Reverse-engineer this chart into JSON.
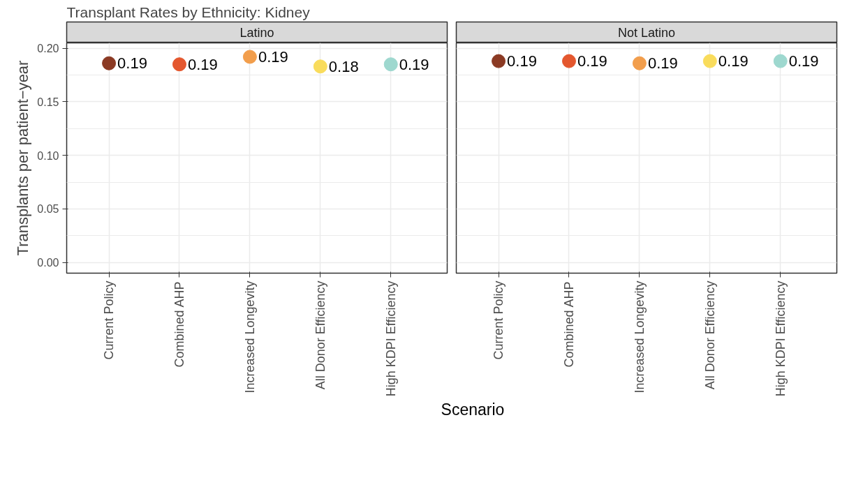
{
  "chart_data": [
    {
      "type": "scatter",
      "title": "Transplant Rates by Ethnicity: Kidney",
      "subtitle": "Latino",
      "ylabel": "Transplants per patient−year",
      "xlabel": "Scenario",
      "categories": [
        "Current Policy",
        "Combined AHP",
        "Increased Longevity",
        "All Donor Efficiency",
        "High KDPI Efficiency"
      ],
      "values": [
        0.186,
        0.185,
        0.192,
        0.183,
        0.185
      ],
      "value_labels": [
        "0.19",
        "0.19",
        "0.19",
        "0.18",
        "0.19"
      ],
      "colors": [
        "#8b3a24",
        "#e4572e",
        "#f29e4c",
        "#f9dc5c",
        "#9ed8cf"
      ],
      "ylim": [
        -0.01,
        0.205
      ],
      "yticks": [
        {
          "value": 0,
          "label": "0.00"
        },
        {
          "value": 0.05,
          "label": "0.05"
        },
        {
          "value": 0.1,
          "label": "0.10"
        },
        {
          "value": 0.15,
          "label": "0.15"
        },
        {
          "value": 0.2,
          "label": "0.20"
        }
      ],
      "grid": true,
      "marker": "circle"
    },
    {
      "type": "scatter",
      "subtitle": "Not Latino",
      "categories": [
        "Current Policy",
        "Combined AHP",
        "Increased Longevity",
        "All Donor Efficiency",
        "High KDPI Efficiency"
      ],
      "values": [
        0.188,
        0.188,
        0.186,
        0.188,
        0.188
      ],
      "value_labels": [
        "0.19",
        "0.19",
        "0.19",
        "0.19",
        "0.19"
      ],
      "colors": [
        "#8b3a24",
        "#e4572e",
        "#f29e4c",
        "#f9dc5c",
        "#9ed8cf"
      ],
      "ylim": [
        -0.01,
        0.205
      ],
      "yticks": [
        0,
        0.05,
        0.1,
        0.15,
        0.2
      ],
      "grid": true,
      "marker": "circle",
      "tick_labels": "x"
    }
  ]
}
